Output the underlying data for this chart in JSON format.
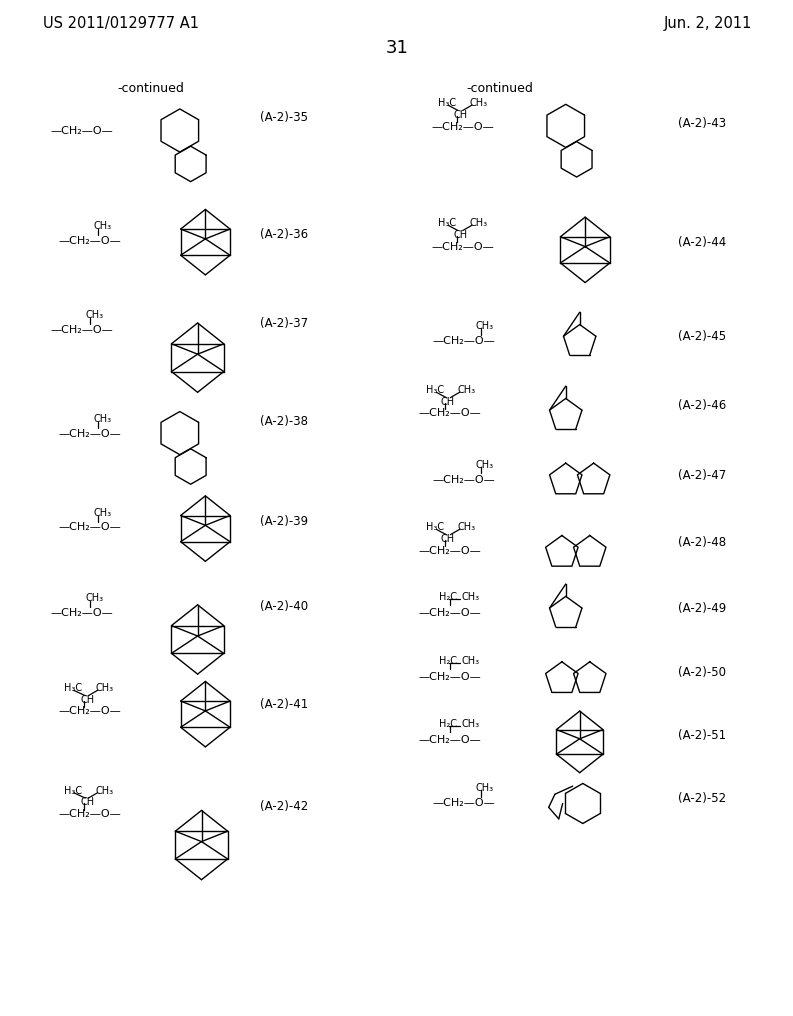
{
  "page_header_left": "US 2011/0129777 A1",
  "page_header_right": "Jun. 2, 2011",
  "page_number": "31",
  "bg_color": "#ffffff",
  "font_size_header": 10.5,
  "font_size_label": 8.5,
  "font_size_small": 7.5,
  "font_size_page": 13
}
